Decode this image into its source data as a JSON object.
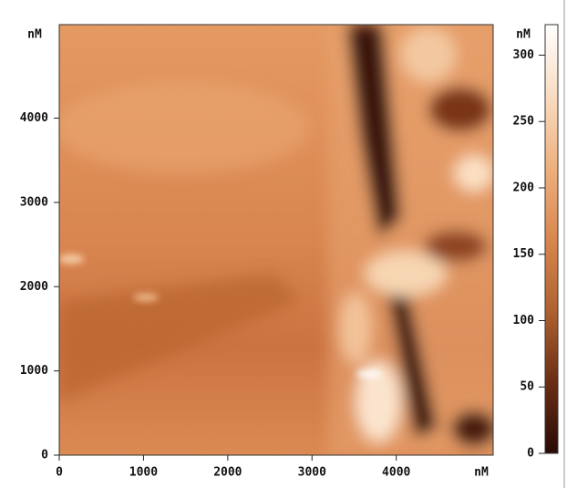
{
  "chart_data": {
    "type": "heatmap-image",
    "x_label": "nM",
    "y_label": "nM",
    "xlim": [
      0,
      5150
    ],
    "ylim": [
      0,
      5110
    ],
    "xticks": [
      0,
      1000,
      2000,
      3000,
      4000
    ],
    "yticks": [
      0,
      1000,
      2000,
      3000,
      4000
    ],
    "colorbar": {
      "label": "nM",
      "lim": [
        0,
        323
      ],
      "ticks": [
        0,
        50,
        100,
        150,
        200,
        250,
        300
      ],
      "colormap": [
        "#2a0a06",
        "#6b2e14",
        "#b0622f",
        "#d9874f",
        "#eeb07e",
        "#f9dcc2",
        "#ffffff"
      ]
    }
  }
}
